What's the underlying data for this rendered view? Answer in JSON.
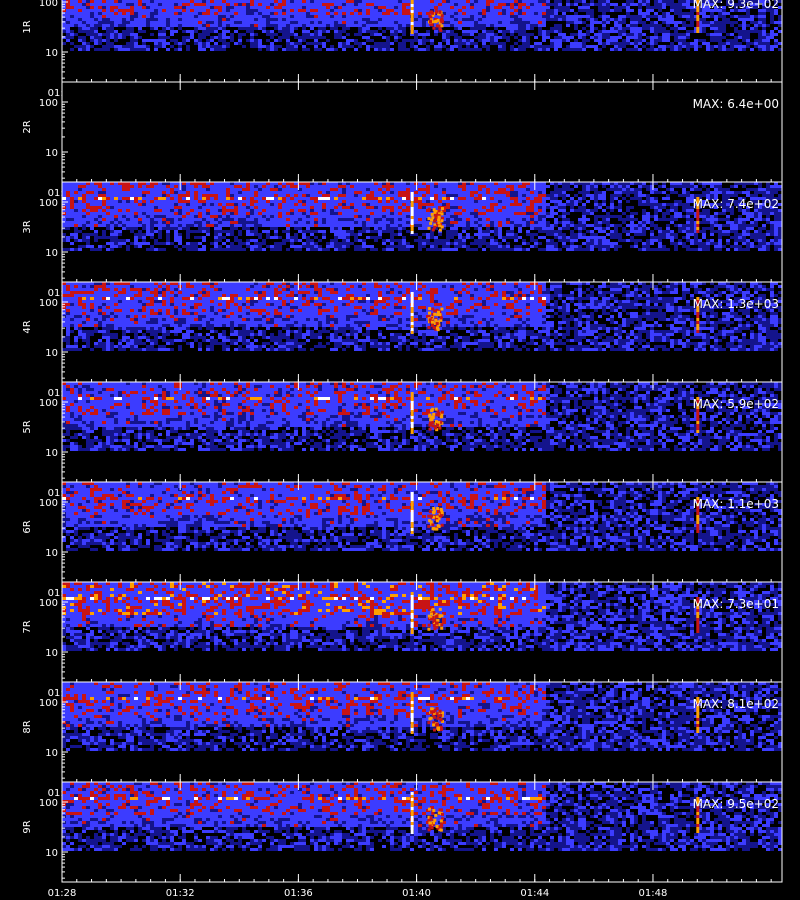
{
  "chart_data": {
    "type": "heatmap",
    "x_tick_labels": [
      "01:28",
      "01:32",
      "01:36",
      "01:40",
      "01:44",
      "01:48"
    ],
    "y_tick_labels": [
      "100",
      "10"
    ],
    "y_scale": "log",
    "colormap": [
      "#000000",
      "#14148c",
      "#3c3cff",
      "#c81414",
      "#ffa000",
      "#ffffff"
    ],
    "panels": [
      {
        "label": "1R",
        "max_label": "MAX: 9.3e+02",
        "intensity": 0.55,
        "has_signal": true
      },
      {
        "label": "2R",
        "max_label": "MAX: 6.4e+00",
        "intensity": 0.0,
        "has_signal": false
      },
      {
        "label": "3R",
        "max_label": "MAX: 7.4e+02",
        "intensity": 0.6,
        "has_signal": true
      },
      {
        "label": "4R",
        "max_label": "MAX: 1.3e+03",
        "intensity": 0.6,
        "has_signal": true
      },
      {
        "label": "5R",
        "max_label": "MAX: 5.9e+02",
        "intensity": 0.55,
        "has_signal": true
      },
      {
        "label": "6R",
        "max_label": "MAX: 1.1e+03",
        "intensity": 0.55,
        "has_signal": true
      },
      {
        "label": "7R",
        "max_label": "MAX: 7.3e+01",
        "intensity": 0.8,
        "has_signal": true
      },
      {
        "label": "8R",
        "max_label": "MAX: 8.1e+02",
        "intensity": 0.6,
        "has_signal": true
      },
      {
        "label": "9R",
        "max_label": "MAX: 9.5e+02",
        "intensity": 0.6,
        "has_signal": true
      }
    ],
    "features": [
      {
        "name": "burst",
        "time": "01:39:50"
      },
      {
        "name": "patch",
        "time": "01:40:30"
      },
      {
        "name": "late-spike",
        "time": "01:49:30"
      }
    ],
    "data_dropoff_time": "01:44:20",
    "footer_label": ""
  }
}
